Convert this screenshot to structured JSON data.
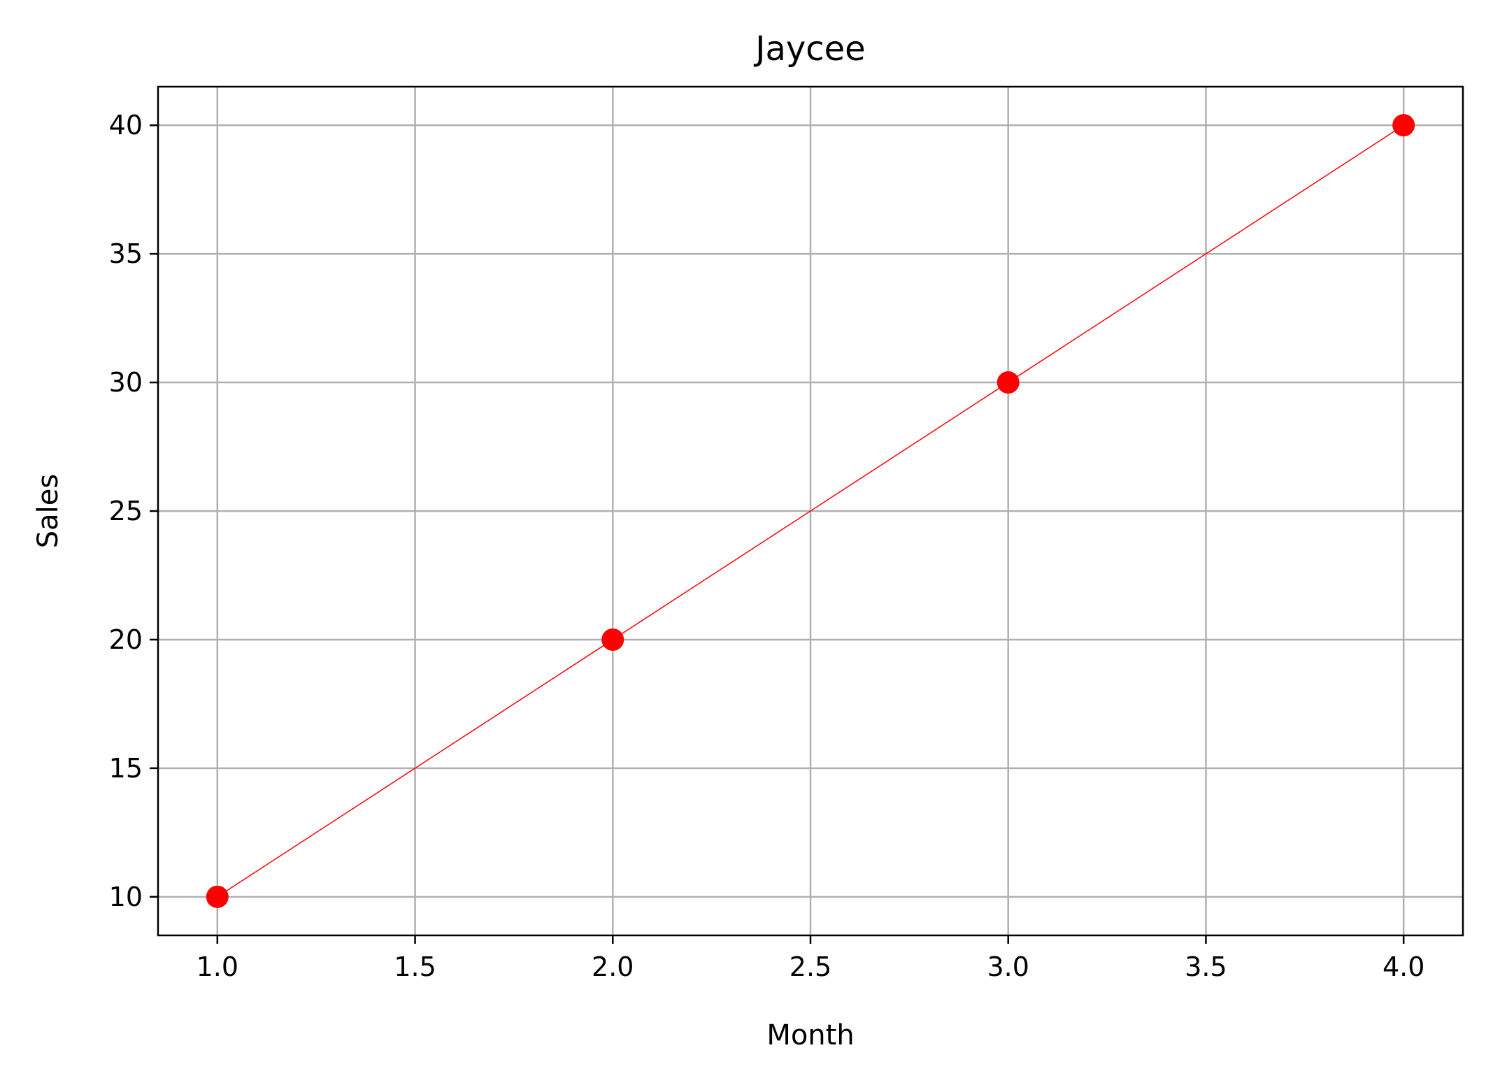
{
  "chart_data": {
    "type": "line",
    "title": "Jaycee",
    "xlabel": "Month",
    "ylabel": "Sales",
    "x": [
      1,
      2,
      3,
      4
    ],
    "series": [
      {
        "values": [
          10,
          20,
          30,
          40
        ],
        "color": "#ff0000",
        "marker": "circle"
      }
    ],
    "xlim": [
      0.85,
      4.15
    ],
    "ylim": [
      8.5,
      41.5
    ],
    "x_ticks": [
      1.0,
      1.5,
      2.0,
      2.5,
      3.0,
      3.5,
      4.0
    ],
    "x_tick_labels": [
      "1.0",
      "1.5",
      "2.0",
      "2.5",
      "3.0",
      "3.5",
      "4.0"
    ],
    "y_ticks": [
      10,
      15,
      20,
      25,
      30,
      35,
      40
    ],
    "y_tick_labels": [
      "10",
      "15",
      "20",
      "25",
      "30",
      "35",
      "40"
    ],
    "grid": true,
    "grid_color": "#b0b0b0"
  }
}
